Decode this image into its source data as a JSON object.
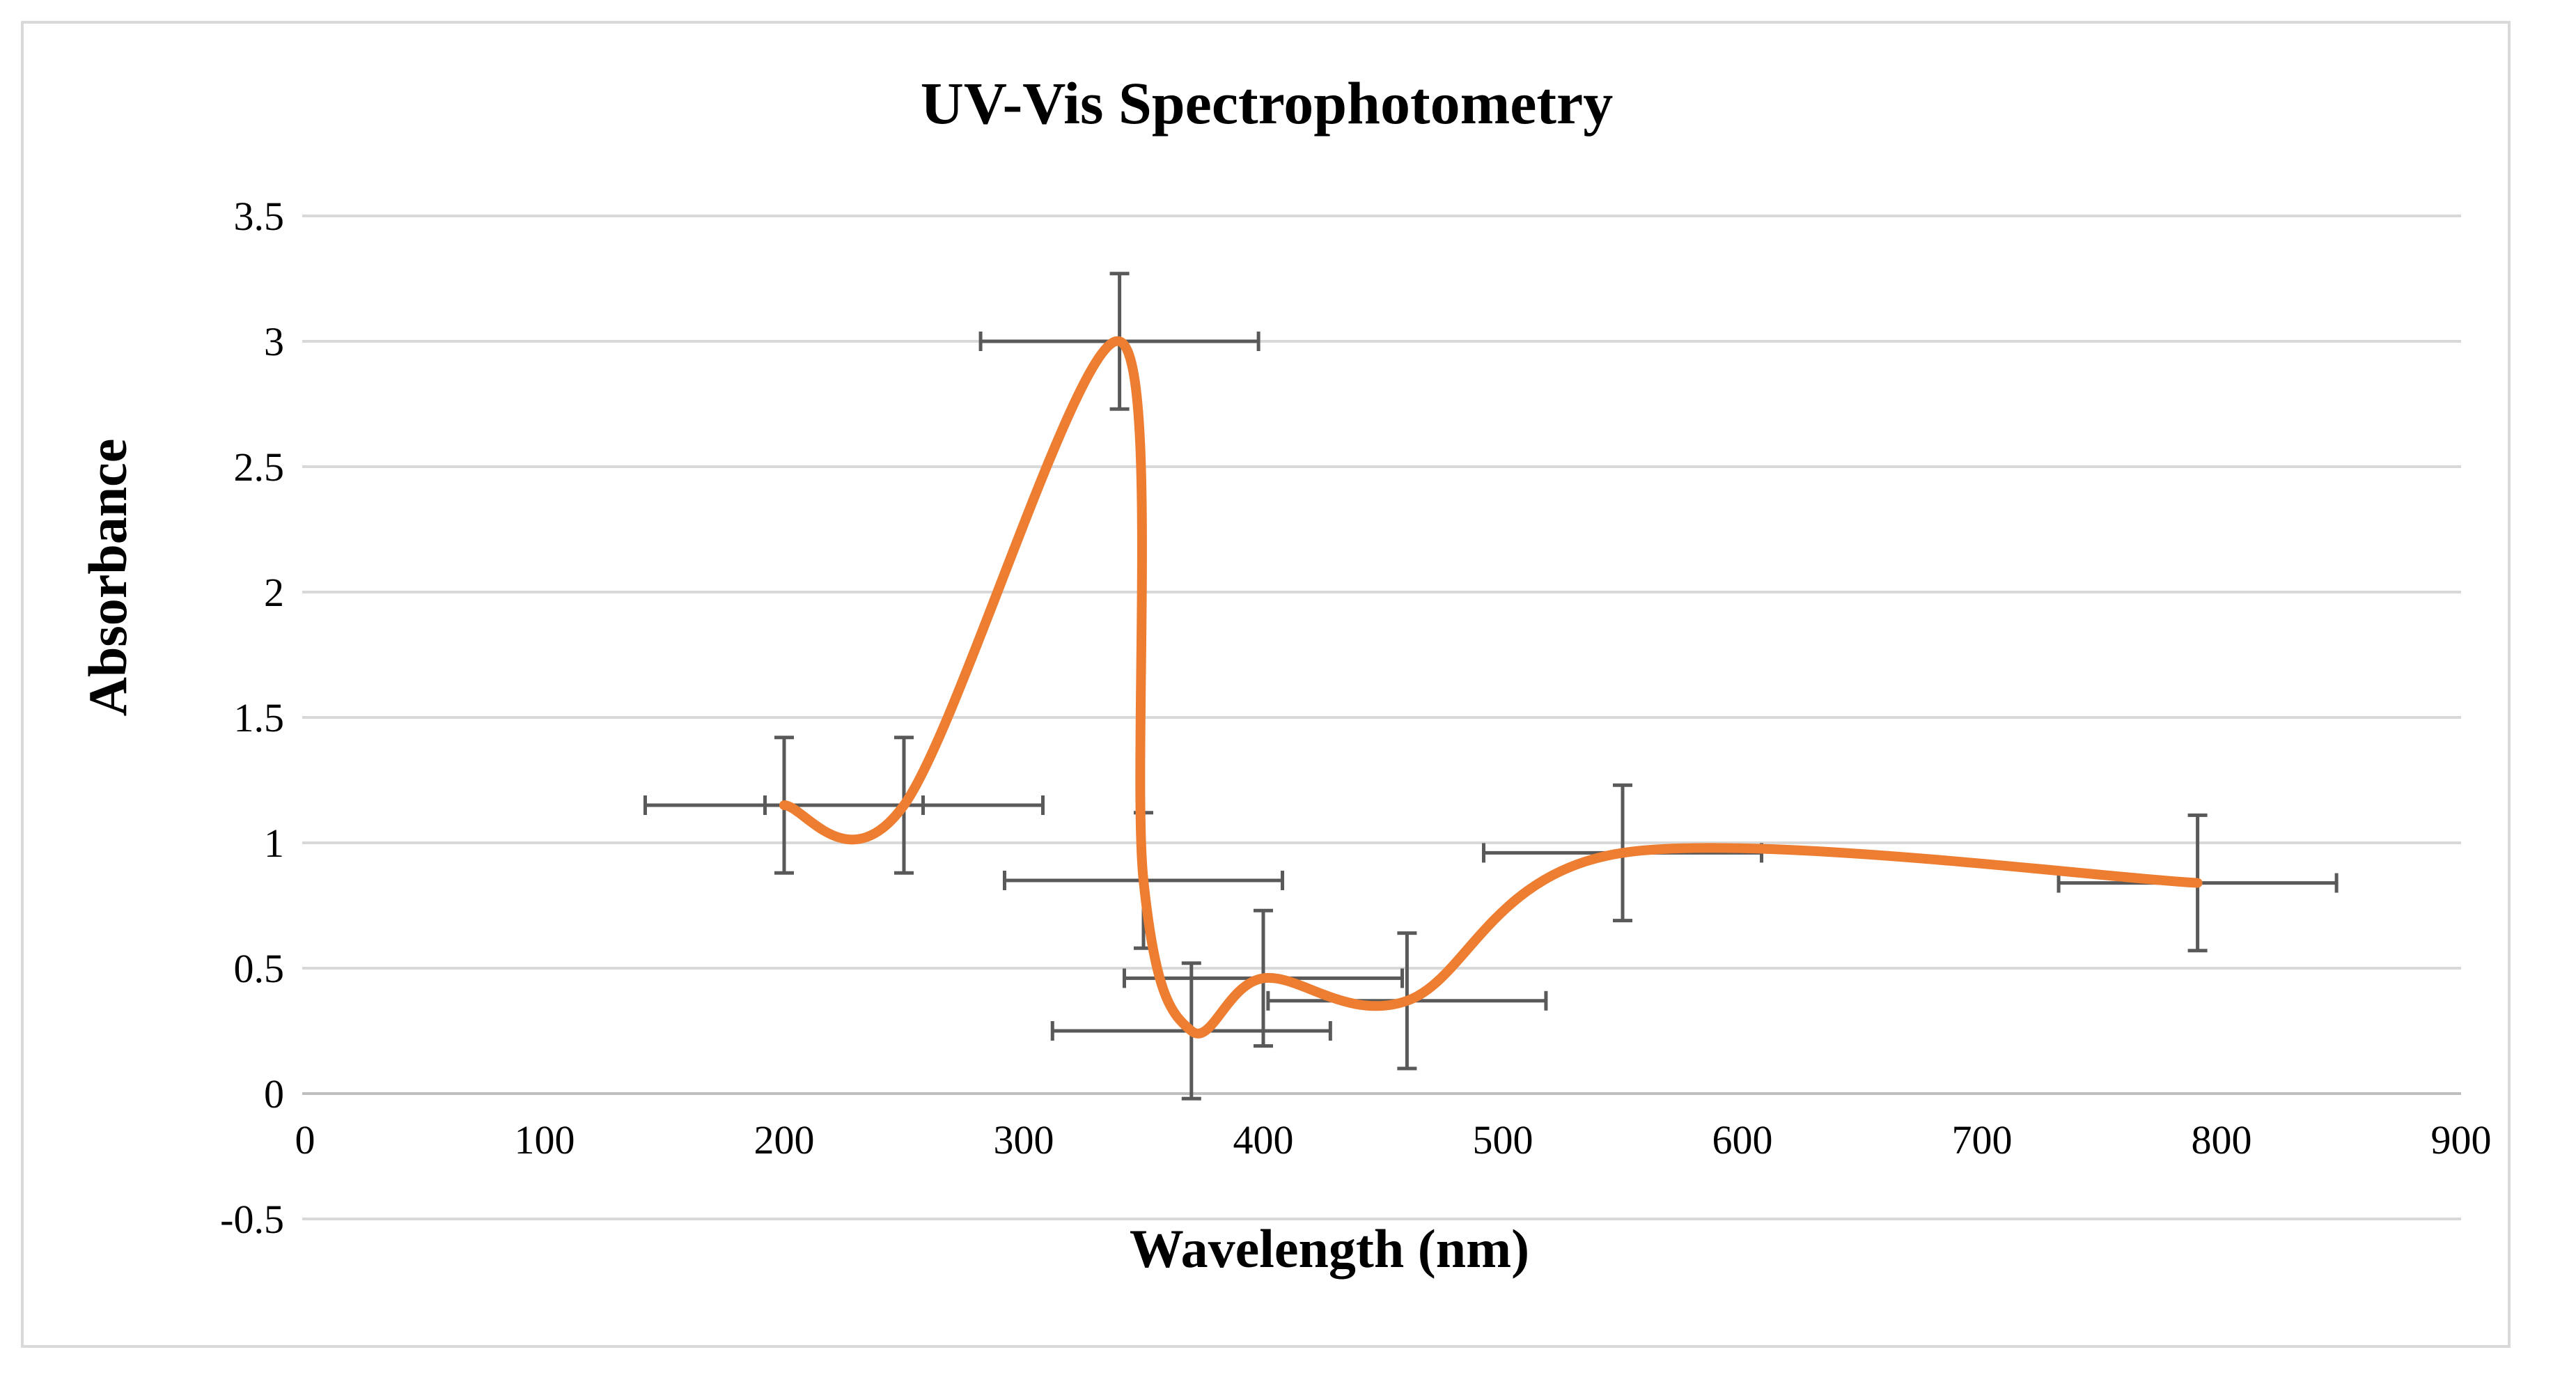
{
  "chart_data": {
    "type": "scatter",
    "title": "UV-Vis Spectrophotometry",
    "xlabel": "Wavelength (nm)",
    "ylabel": "Absorbance",
    "xlim": [
      0,
      900
    ],
    "ylim": [
      -0.5,
      3.5
    ],
    "x_ticks": [
      0,
      100,
      200,
      300,
      400,
      500,
      600,
      700,
      800,
      900
    ],
    "y_ticks": [
      -0.5,
      0,
      0.5,
      1,
      1.5,
      2,
      2.5,
      3,
      3.5
    ],
    "x_tick_labels": [
      "0",
      "100",
      "200",
      "300",
      "400",
      "500",
      "600",
      "700",
      "800",
      "900"
    ],
    "y_tick_labels": [
      "-0.5",
      "0",
      "0.5",
      "1",
      "1.5",
      "2",
      "2.5",
      "3",
      "3.5"
    ],
    "grid": "horizontal",
    "smooth_line": true,
    "series": [
      {
        "name": "Absorbance",
        "color": "#ed7d31",
        "error_bar_color": "#595959",
        "points": [
          {
            "x": 200,
            "y": 1.15,
            "x_err": 58,
            "y_err": 0.27
          },
          {
            "x": 250,
            "y": 1.15,
            "x_err": 58,
            "y_err": 0.27
          },
          {
            "x": 340,
            "y": 3.0,
            "x_err": 58,
            "y_err": 0.27
          },
          {
            "x": 350,
            "y": 0.85,
            "x_err": 58,
            "y_err": 0.27
          },
          {
            "x": 370,
            "y": 0.25,
            "x_err": 58,
            "y_err": 0.27
          },
          {
            "x": 400,
            "y": 0.46,
            "x_err": 58,
            "y_err": 0.27
          },
          {
            "x": 460,
            "y": 0.37,
            "x_err": 58,
            "y_err": 0.27
          },
          {
            "x": 550,
            "y": 0.96,
            "x_err": 58,
            "y_err": 0.27
          },
          {
            "x": 790,
            "y": 0.84,
            "x_err": 58,
            "y_err": 0.27
          }
        ]
      }
    ]
  }
}
